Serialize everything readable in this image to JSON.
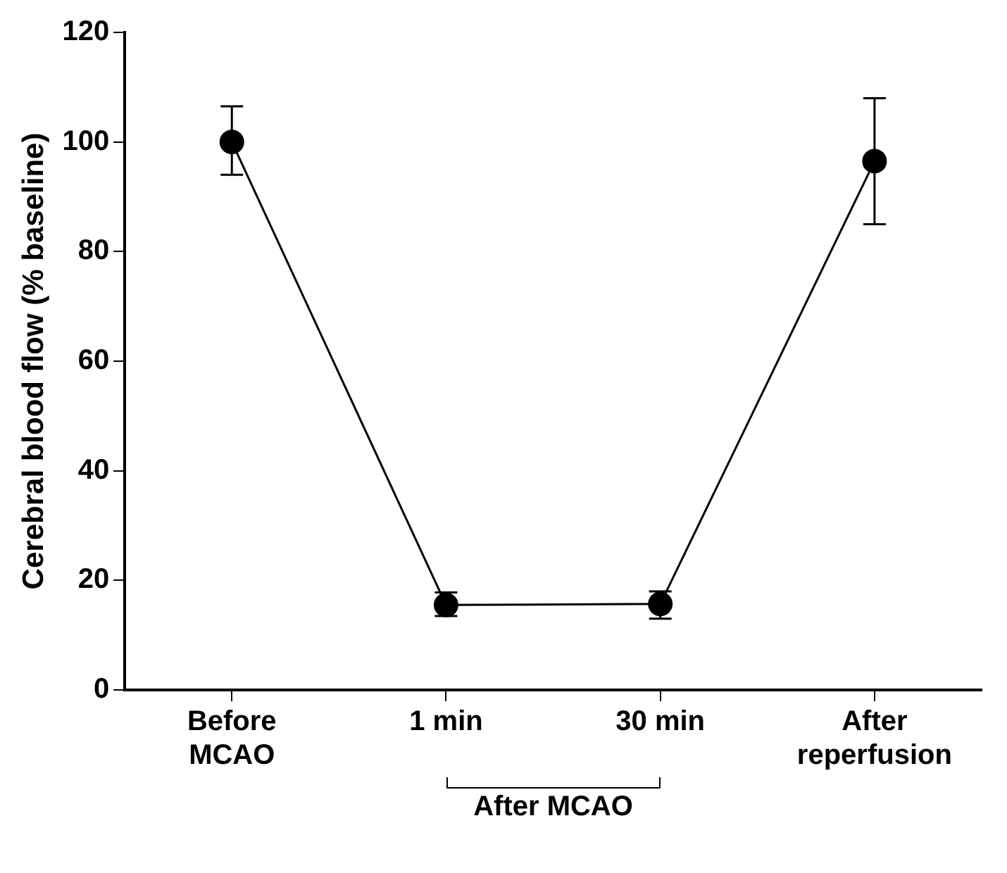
{
  "chart_data": {
    "type": "line",
    "ylabel": "Cerebral blood flow (% baseline)",
    "categories": [
      "Before\nMCAO",
      "1 min",
      "30 min",
      "After\nreperfusion"
    ],
    "series": [
      {
        "color": "#000000",
        "values": [
          100,
          15.5,
          15.7,
          96.5
        ],
        "errors": [
          [
            94,
            106.5
          ],
          [
            13.5,
            17.8
          ],
          [
            13,
            18
          ],
          [
            85,
            108
          ]
        ]
      }
    ],
    "ylim": [
      0,
      120
    ],
    "yticks": [
      0,
      20,
      40,
      60,
      80,
      100,
      120
    ],
    "grid": false,
    "legend": false,
    "marker": "circle",
    "line_style": "solid",
    "annotations": [
      "After MCAO"
    ]
  }
}
